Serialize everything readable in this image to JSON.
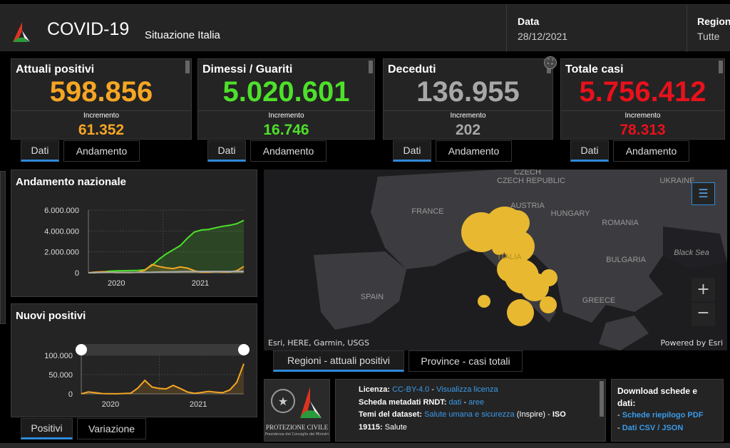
{
  "header": {
    "title": "COVID-19",
    "subtitle": "Situazione Italia",
    "date_label": "Data",
    "date_value": "28/12/2021",
    "region_label": "Regioni",
    "region_value": "Tutte"
  },
  "cards": [
    {
      "title": "Attuali positivi",
      "value": "598.856",
      "inc_label": "Incremento",
      "inc_value": "61.352",
      "color": "#f5a623",
      "tabs": [
        "Dati",
        "Andamento"
      ]
    },
    {
      "title": "Dimessi / Guariti",
      "value": "5.020.601",
      "inc_label": "Incremento",
      "inc_value": "16.746",
      "color": "#4ee02a",
      "tabs": [
        "Dati",
        "Andamento"
      ]
    },
    {
      "title": "Deceduti",
      "value": "136.955",
      "inc_label": "Incremento",
      "inc_value": "202",
      "color": "#a8a8a8",
      "tabs": [
        "Dati",
        "Andamento"
      ]
    },
    {
      "title": "Totale casi",
      "value": "5.756.412",
      "inc_label": "Incremento",
      "inc_value": "78.313",
      "color": "#e8111c",
      "tabs": [
        "Dati",
        "Andamento"
      ]
    }
  ],
  "chart_data": [
    {
      "type": "area",
      "title": "Andamento nazionale",
      "x": [
        "2020-02",
        "2020-03",
        "2020-04",
        "2020-05",
        "2020-06",
        "2020-07",
        "2020-08",
        "2020-09",
        "2020-10",
        "2020-11",
        "2020-12",
        "2021-01",
        "2021-02",
        "2021-03",
        "2021-04",
        "2021-05",
        "2021-06",
        "2021-07",
        "2021-08",
        "2021-09",
        "2021-10",
        "2021-11",
        "2021-12"
      ],
      "yticks": [
        "0",
        "2.000.000",
        "4.000.000",
        "6.000.000"
      ],
      "ylim": [
        0,
        6000000
      ],
      "xticks": [
        "2020",
        "2021"
      ],
      "grid": true,
      "series": [
        {
          "color": "#4ee02a",
          "values": [
            0,
            10000,
            80000,
            150000,
            190000,
            200000,
            210000,
            230000,
            290000,
            700000,
            1300000,
            1800000,
            2200000,
            2600000,
            3300000,
            3900000,
            4100000,
            4150000,
            4300000,
            4450000,
            4550000,
            4700000,
            5020601
          ]
        },
        {
          "color": "#f5a623",
          "values": [
            0,
            70000,
            100000,
            50000,
            20000,
            13000,
            20000,
            45000,
            250000,
            800000,
            600000,
            480000,
            400000,
            560000,
            450000,
            200000,
            50000,
            60000,
            130000,
            90000,
            80000,
            200000,
            598856
          ]
        },
        {
          "color": "#a8a8a8",
          "values": [
            0,
            12000,
            28000,
            33000,
            34700,
            35100,
            35500,
            36000,
            39000,
            56000,
            74000,
            88000,
            97000,
            109000,
            120000,
            126000,
            127500,
            128000,
            128800,
            130700,
            132000,
            133800,
            136955
          ]
        }
      ]
    },
    {
      "type": "area",
      "title": "Nuovi positivi",
      "x": [
        "2020-02",
        "2020-03",
        "2020-04",
        "2020-05",
        "2020-06",
        "2020-07",
        "2020-08",
        "2020-09",
        "2020-10",
        "2020-11",
        "2020-12",
        "2021-01",
        "2021-02",
        "2021-03",
        "2021-04",
        "2021-05",
        "2021-06",
        "2021-07",
        "2021-08",
        "2021-09",
        "2021-10",
        "2021-11",
        "2021-12",
        "2021-12-28"
      ],
      "yticks": [
        "0",
        "50.000",
        "100.000"
      ],
      "ylim": [
        0,
        100000
      ],
      "xticks": [
        "2020",
        "2021"
      ],
      "grid": true,
      "series": [
        {
          "color": "#f5a623",
          "values": [
            0,
            5000,
            3000,
            800,
            300,
            250,
            900,
            1600,
            15000,
            35000,
            18000,
            14000,
            13000,
            22000,
            14000,
            5000,
            1500,
            3500,
            6500,
            4500,
            3000,
            10000,
            30000,
            78313
          ]
        }
      ]
    }
  ],
  "chart_tabs": [
    "Positivi",
    "Variazione"
  ],
  "map": {
    "labels": [
      "CZECH REPUBLIC",
      "UKRAINE",
      "FRANCE",
      "AUSTRIA",
      "HUNGARY",
      "ROMANIA",
      "Black Sea",
      "BULGARIA",
      "SPAIN",
      "GREECE",
      "ITALIA"
    ],
    "attribution": "Esri, HERE, Garmin, USGS",
    "powered": "Powered by Esri",
    "bubble_color": "#e8b830",
    "tabs": [
      "Regioni - attuali positivi",
      "Province - casi totali"
    ]
  },
  "logo": {
    "org": "PROTEZIONE CIVILE",
    "org_sub": "Presidenza del Consiglio dei Ministri"
  },
  "info": {
    "license_label": "Licenza:",
    "license": "CC-BY-4.0",
    "license_sep": " - ",
    "license_link": "Visualizza licenza",
    "rndt_label": "Scheda metadati RNDT:",
    "rndt_dati": "dati",
    "rndt_aree": "aree",
    "themes_label": "Temi del dataset:",
    "themes_link": "Salute umana e sicurezza",
    "themes_rest": " (Inspire) - ",
    "iso": "ISO 19115:",
    "iso_val": " Salute"
  },
  "download": {
    "title": "Download schede e dati:",
    "links": [
      "Schede riepilogo PDF",
      "Dati CSV / JSON"
    ]
  }
}
